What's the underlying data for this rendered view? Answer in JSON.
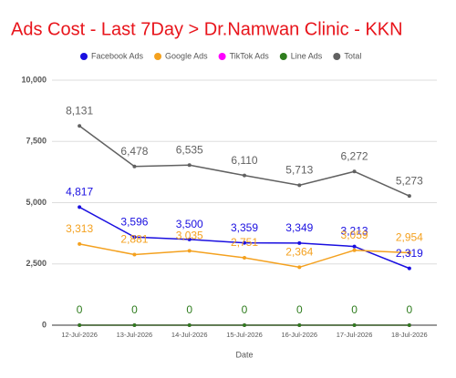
{
  "chart_data": {
    "type": "line",
    "title": "Ads Cost - Last 7Day > Dr.Namwan Clinic - KKN",
    "x_label": "Date",
    "categories": [
      "12-Jul-2026",
      "13-Jul-2026",
      "14-Jul-2026",
      "15-Jul-2026",
      "16-Jul-2026",
      "17-Jul-2026",
      "18-Jul-2026"
    ],
    "series": [
      {
        "name": "Facebook Ads",
        "color": "#1a0fe0",
        "values": [
          4817,
          3596,
          3500,
          3359,
          3349,
          3213,
          2319
        ],
        "value_labels": [
          "4,817",
          "3,596",
          "3,500",
          "3,359",
          "3,349",
          "3,213",
          "2,319"
        ]
      },
      {
        "name": "Google Ads",
        "color": "#f4a11f",
        "values": [
          3313,
          2881,
          3035,
          2751,
          2364,
          3059,
          2954
        ],
        "value_labels": [
          "3,313",
          "2,881",
          "3,035",
          "2,751",
          "2,364",
          "3,059",
          "2,954"
        ]
      },
      {
        "name": "TikTok Ads",
        "color": "#ff00ff",
        "values": [
          0,
          0,
          0,
          0,
          0,
          0,
          0
        ]
      },
      {
        "name": "Line Ads",
        "color": "#2f7d1e",
        "values": [
          0,
          0,
          0,
          0,
          0,
          0,
          0
        ],
        "value_labels": [
          "0",
          "0",
          "0",
          "0",
          "0",
          "0",
          "0"
        ]
      },
      {
        "name": "Total",
        "color": "#616161",
        "values": [
          8131,
          6478,
          6535,
          6110,
          5713,
          6272,
          5273
        ],
        "value_labels": [
          "8,131",
          "6,478",
          "6,535",
          "6,110",
          "5,713",
          "6,272",
          "5,273"
        ]
      }
    ],
    "ylim": [
      0,
      10000
    ],
    "yticks": [
      0,
      {
        "value": 2500,
        "label": "2,500"
      },
      {
        "value": 5000,
        "label": "5,000"
      },
      {
        "value": 7500,
        "label": "7,500"
      },
      {
        "value": 10000,
        "label": "10,000"
      }
    ],
    "grid": true,
    "legend": "top"
  }
}
